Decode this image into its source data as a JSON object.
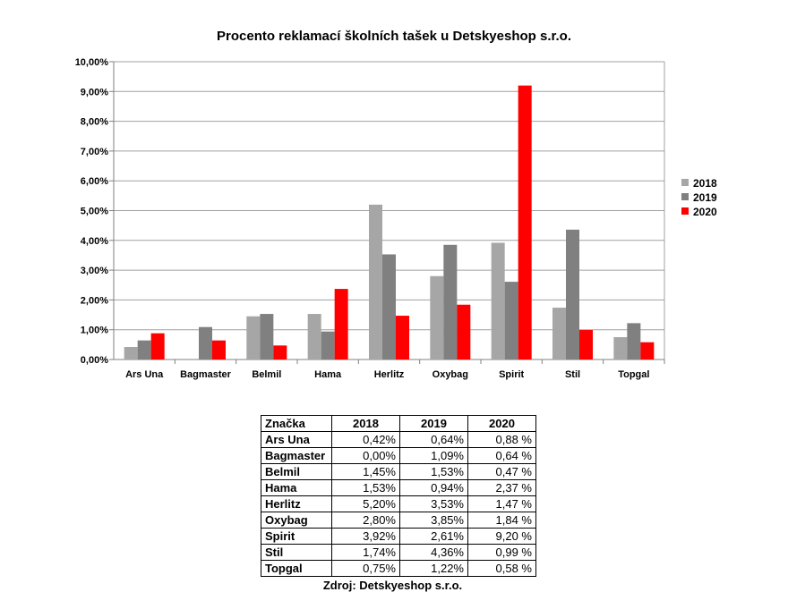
{
  "chart_data": {
    "type": "bar",
    "title": "Procento reklamací školních tašek u Detskyeshop s.r.o.",
    "xlabel": "",
    "ylabel": "",
    "ylim": [
      0,
      10
    ],
    "y_ticks": [
      "0,00%",
      "1,00%",
      "2,00%",
      "3,00%",
      "4,00%",
      "5,00%",
      "6,00%",
      "7,00%",
      "8,00%",
      "9,00%",
      "10,00%"
    ],
    "grid": true,
    "legend_position": "right",
    "categories": [
      "Ars Una",
      "Bagmaster",
      "Belmil",
      "Hama",
      "Herlitz",
      "Oxybag",
      "Spirit",
      "Stil",
      "Topgal"
    ],
    "series": [
      {
        "name": "2018",
        "color": "#a6a6a6",
        "values": [
          0.42,
          0.0,
          1.45,
          1.53,
          5.2,
          2.8,
          3.92,
          1.74,
          0.75
        ]
      },
      {
        "name": "2019",
        "color": "#808080",
        "values": [
          0.64,
          1.09,
          1.53,
          0.94,
          3.53,
          3.85,
          2.61,
          4.36,
          1.22
        ]
      },
      {
        "name": "2020",
        "color": "#ff0000",
        "values": [
          0.88,
          0.64,
          0.47,
          2.37,
          1.47,
          1.84,
          9.2,
          0.99,
          0.58
        ]
      }
    ]
  },
  "table": {
    "headers": [
      "Značka",
      "2018",
      "2019",
      "2020"
    ],
    "rows": [
      [
        "Ars Una",
        "0,42%",
        "0,64%",
        "0,88 %"
      ],
      [
        "Bagmaster",
        "0,00%",
        "1,09%",
        "0,64 %"
      ],
      [
        "Belmil",
        "1,45%",
        "1,53%",
        "0,47 %"
      ],
      [
        "Hama",
        "1,53%",
        "0,94%",
        "2,37 %"
      ],
      [
        "Herlitz",
        "5,20%",
        "3,53%",
        "1,47 %"
      ],
      [
        "Oxybag",
        "2,80%",
        "3,85%",
        "1,84 %"
      ],
      [
        "Spirit",
        "3,92%",
        "2,61%",
        "9,20 %"
      ],
      [
        "Stil",
        "1,74%",
        "4,36%",
        "0,99 %"
      ],
      [
        "Topgal",
        "0,75%",
        "1,22%",
        "0,58 %"
      ]
    ]
  },
  "source": "Zdroj: Detskyeshop s.r.o."
}
